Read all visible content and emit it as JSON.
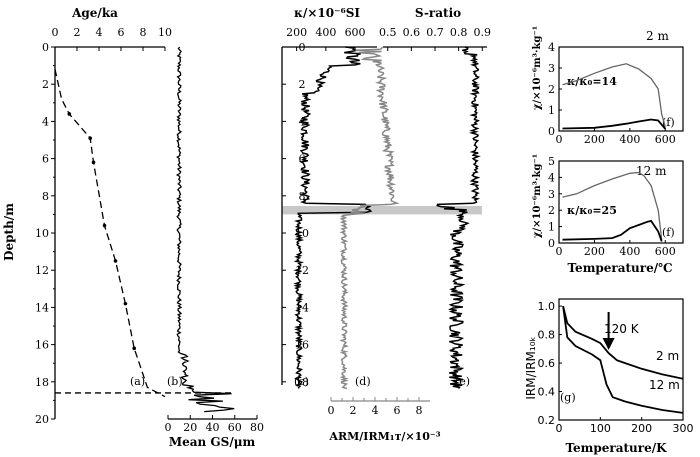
{
  "panels": {
    "a": {
      "title": "Age/ka",
      "letter": "(a)",
      "ylabel": "Depth/m",
      "xticks": [
        "0",
        "2",
        "4",
        "6",
        "8",
        "10"
      ],
      "yticks": [
        "0",
        "2",
        "4",
        "6",
        "8",
        "10",
        "12",
        "14",
        "16",
        "18",
        "20"
      ],
      "xlim": [
        0,
        10
      ],
      "ylim": [
        0,
        20
      ]
    },
    "b": {
      "xlabel": "Mean GS/μm",
      "letter": "(b)",
      "xticks": [
        "0",
        "20",
        "40",
        "60",
        "80"
      ],
      "xlim": [
        0,
        80
      ]
    },
    "c": {
      "title": "κ/×10⁻⁶SI",
      "letter": "(c)",
      "xticks": [
        "200",
        "400",
        "600"
      ],
      "xlim": [
        100,
        750
      ]
    },
    "d": {
      "xlabel": "ARM/IRM₁ᴛ/×10⁻³",
      "letter": "(d)",
      "xticks": [
        "0",
        "2",
        "4",
        "6",
        "8"
      ],
      "xlim": [
        0,
        9
      ]
    },
    "e": {
      "title": "S-ratio",
      "letter": "(e)",
      "xticks": [
        "0.5",
        "0.6",
        "0.7",
        "0.8",
        "0.9"
      ],
      "xlim": [
        0.48,
        0.92
      ]
    },
    "f1": {
      "ylabel": "χ/×10⁻⁶m³·kg⁻¹",
      "depth_label": "2 m",
      "ratio_label": "κ/κ₀=14",
      "letter": "(f)",
      "xticks": [
        "0",
        "200",
        "400",
        "600"
      ],
      "yticks": [
        "0",
        "1",
        "2",
        "3",
        "4"
      ],
      "xlim": [
        0,
        700
      ],
      "ylim": [
        0,
        4
      ]
    },
    "f2": {
      "ylabel": "χ/×10⁻⁶m³·kg⁻¹",
      "depth_label": "12 m",
      "ratio_label": "κ/κ₀=25",
      "letter": "(f)",
      "xlabel": "Temperature/℃",
      "xticks": [
        "0",
        "200",
        "400",
        "600"
      ],
      "yticks": [
        "0",
        "1",
        "2",
        "3",
        "4",
        "5"
      ],
      "xlim": [
        0,
        700
      ],
      "ylim": [
        0,
        5
      ]
    },
    "g": {
      "ylabel": "IRM/IRM₁₀ₖ",
      "xlabel": "Temperature/K",
      "letter": "(g)",
      "arrow_label": "120 K",
      "label_2m": "2 m",
      "label_12m": "12 m",
      "xticks": [
        "0",
        "100",
        "200",
        "300"
      ],
      "yticks": [
        "0.2",
        "0.4",
        "0.6",
        "0.8",
        "1.0"
      ],
      "xlim": [
        0,
        300
      ],
      "ylim": [
        0.2,
        1.05
      ]
    }
  },
  "chart_data": [
    {
      "type": "line",
      "panel": "a",
      "series": [
        {
          "x": [
            0,
            0.6,
            1.3,
            3.2,
            3.5,
            4.5,
            5.5,
            6.4,
            7.2,
            8.4,
            10.0
          ],
          "y": [
            1.2,
            2.8,
            3.6,
            4.9,
            6.2,
            9.6,
            11.5,
            13.8,
            16.2,
            18.3,
            18.8
          ]
        }
      ],
      "markers_x": [
        1.3,
        3.2,
        3.5,
        4.5,
        5.5,
        6.4,
        7.2
      ],
      "markers_y": [
        3.6,
        4.9,
        6.2,
        9.6,
        11.5,
        13.8,
        16.2
      ],
      "hline_depth": 18.6
    },
    {
      "type": "line",
      "panel": "f1",
      "series": [
        {
          "name": "heating",
          "x": [
            20,
            100,
            200,
            300,
            380,
            450,
            520,
            560,
            580,
            600
          ],
          "y": [
            2.2,
            2.4,
            2.75,
            3.05,
            3.2,
            2.95,
            2.5,
            2.0,
            0.8,
            0.2
          ]
        },
        {
          "name": "cooling",
          "x": [
            20,
            200,
            300,
            380,
            450,
            520,
            560,
            580,
            600
          ],
          "y": [
            0.12,
            0.15,
            0.25,
            0.35,
            0.45,
            0.55,
            0.5,
            0.3,
            0.1
          ]
        }
      ]
    },
    {
      "type": "line",
      "panel": "f2",
      "series": [
        {
          "name": "heating",
          "x": [
            20,
            100,
            200,
            300,
            400,
            450,
            480,
            520,
            560,
            580
          ],
          "y": [
            2.8,
            3.0,
            3.5,
            3.9,
            4.25,
            4.3,
            4.1,
            3.5,
            2.0,
            0.2
          ]
        },
        {
          "name": "cooling",
          "x": [
            20,
            200,
            300,
            350,
            400,
            450,
            500,
            520,
            560,
            580
          ],
          "y": [
            0.2,
            0.25,
            0.3,
            0.5,
            0.9,
            1.1,
            1.3,
            1.35,
            0.7,
            0.1
          ]
        }
      ]
    },
    {
      "type": "line",
      "panel": "g",
      "series": [
        {
          "name": "2 m",
          "x": [
            10,
            20,
            40,
            80,
            100,
            120,
            140,
            160,
            200,
            250,
            300
          ],
          "y": [
            1.0,
            0.88,
            0.82,
            0.77,
            0.74,
            0.67,
            0.62,
            0.6,
            0.56,
            0.52,
            0.49
          ]
        },
        {
          "name": "12 m",
          "x": [
            10,
            20,
            40,
            80,
            100,
            115,
            130,
            160,
            200,
            250,
            300
          ],
          "y": [
            1.0,
            0.78,
            0.72,
            0.66,
            0.62,
            0.45,
            0.36,
            0.33,
            0.3,
            0.27,
            0.25
          ]
        }
      ]
    }
  ]
}
